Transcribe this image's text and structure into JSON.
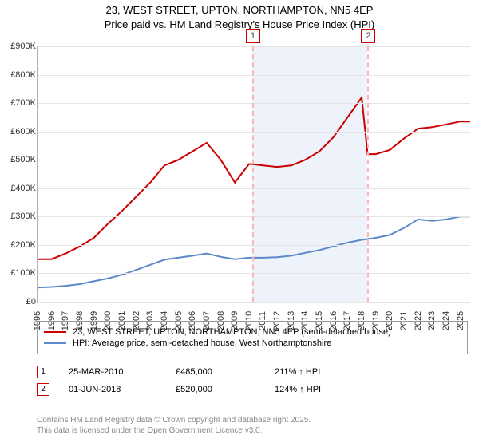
{
  "title_line1": "23, WEST STREET, UPTON, NORTHAMPTON, NN5 4EP",
  "title_line2": "Price paid vs. HM Land Registry's House Price Index (HPI)",
  "chart": {
    "type": "line",
    "xlim": [
      1995,
      2025.7
    ],
    "ylim": [
      0,
      900000
    ],
    "ytick_step": 100000,
    "yticks": [
      "£0",
      "£100K",
      "£200K",
      "£300K",
      "£400K",
      "£500K",
      "£600K",
      "£700K",
      "£800K",
      "£900K"
    ],
    "xticks": [
      1995,
      1996,
      1997,
      1998,
      1999,
      2000,
      2001,
      2002,
      2003,
      2004,
      2005,
      2006,
      2007,
      2008,
      2009,
      2010,
      2011,
      2012,
      2013,
      2014,
      2015,
      2016,
      2017,
      2018,
      2019,
      2020,
      2021,
      2022,
      2023,
      2024,
      2025
    ],
    "grid_color": "#e5e5e5",
    "background_color": "#ffffff",
    "shade_color": "#eef2fb",
    "shade_range": [
      2010.23,
      2018.42
    ],
    "event_line_color": "#ffb3b3",
    "events": [
      {
        "id": "1",
        "x": 2010.23
      },
      {
        "id": "2",
        "x": 2018.42
      }
    ],
    "series": [
      {
        "name": "price_paid",
        "label": "23, WEST STREET, UPTON, NORTHAMPTON, NN5 4EP (semi-detached house)",
        "color": "#cc0000",
        "line_width": 2,
        "points": [
          [
            1995,
            150000
          ],
          [
            1996,
            150000
          ],
          [
            1997,
            170000
          ],
          [
            1998,
            195000
          ],
          [
            1999,
            225000
          ],
          [
            2000,
            275000
          ],
          [
            2001,
            320000
          ],
          [
            2002,
            370000
          ],
          [
            2003,
            420000
          ],
          [
            2004,
            480000
          ],
          [
            2005,
            500000
          ],
          [
            2006,
            530000
          ],
          [
            2007,
            560000
          ],
          [
            2008,
            500000
          ],
          [
            2009,
            420000
          ],
          [
            2010,
            485000
          ],
          [
            2010.23,
            485000
          ],
          [
            2011,
            480000
          ],
          [
            2012,
            475000
          ],
          [
            2013,
            480000
          ],
          [
            2014,
            500000
          ],
          [
            2015,
            530000
          ],
          [
            2016,
            580000
          ],
          [
            2017,
            650000
          ],
          [
            2018,
            720000
          ],
          [
            2018.42,
            520000
          ],
          [
            2019,
            520000
          ],
          [
            2020,
            535000
          ],
          [
            2021,
            575000
          ],
          [
            2022,
            610000
          ],
          [
            2023,
            615000
          ],
          [
            2024,
            625000
          ],
          [
            2025,
            635000
          ],
          [
            2025.7,
            635000
          ]
        ]
      },
      {
        "name": "hpi",
        "label": "HPI: Average price, semi-detached house, West Northamptonshire",
        "color": "#5b89c9",
        "line_width": 2,
        "points": [
          [
            1995,
            50000
          ],
          [
            1996,
            52000
          ],
          [
            1997,
            56000
          ],
          [
            1998,
            62000
          ],
          [
            1999,
            72000
          ],
          [
            2000,
            82000
          ],
          [
            2001,
            95000
          ],
          [
            2002,
            112000
          ],
          [
            2003,
            130000
          ],
          [
            2004,
            148000
          ],
          [
            2005,
            155000
          ],
          [
            2006,
            162000
          ],
          [
            2007,
            170000
          ],
          [
            2008,
            158000
          ],
          [
            2009,
            150000
          ],
          [
            2010,
            155000
          ],
          [
            2011,
            155000
          ],
          [
            2012,
            157000
          ],
          [
            2013,
            162000
          ],
          [
            2014,
            172000
          ],
          [
            2015,
            182000
          ],
          [
            2016,
            195000
          ],
          [
            2017,
            208000
          ],
          [
            2018,
            218000
          ],
          [
            2019,
            225000
          ],
          [
            2020,
            235000
          ],
          [
            2021,
            260000
          ],
          [
            2022,
            290000
          ],
          [
            2023,
            285000
          ],
          [
            2024,
            290000
          ],
          [
            2025,
            300000
          ],
          [
            2025.7,
            300000
          ]
        ]
      }
    ]
  },
  "sales": [
    {
      "id": "1",
      "date": "25-MAR-2010",
      "price": "£485,000",
      "delta": "211% ↑ HPI"
    },
    {
      "id": "2",
      "date": "01-JUN-2018",
      "price": "£520,000",
      "delta": "124% ↑ HPI"
    }
  ],
  "footer_line1": "Contains HM Land Registry data © Crown copyright and database right 2025.",
  "footer_line2": "This data is licensed under the Open Government Licence v3.0."
}
